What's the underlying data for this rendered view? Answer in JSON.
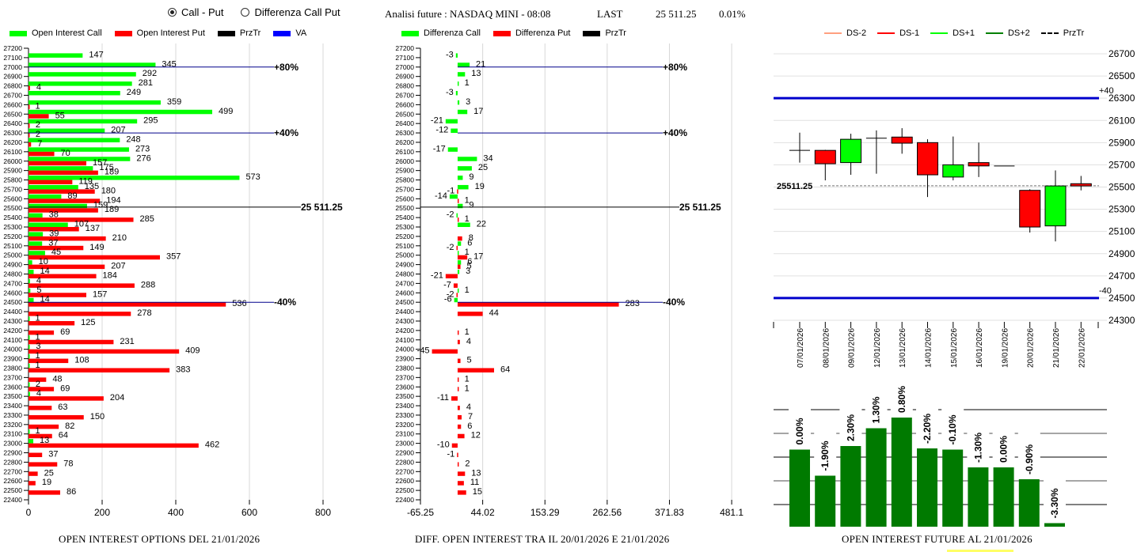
{
  "top_controls": {
    "radio_options": [
      {
        "label": "Call - Put",
        "selected": true
      },
      {
        "label": "Differenza Call Put",
        "selected": false
      }
    ]
  },
  "header": {
    "title": "Analisi future : NASDAQ MINI - 08:08",
    "last_label": "LAST",
    "last_value": "25 511.25",
    "change": "0.01%"
  },
  "colors": {
    "call": "#00ff00",
    "put": "#ff0000",
    "przTr": "#000000",
    "va": "#0000ff",
    "ds_minus2": "#ff9f7f",
    "ds_minus1": "#ff0000",
    "ds_plus1": "#00ff00",
    "ds_plus2": "#008000",
    "oi_bar": "#008000"
  },
  "chart_data": [
    {
      "id": "open-interest-options",
      "type": "bar",
      "orientation": "horizontal",
      "title": "OPEN INTEREST OPTIONS DEL 21/01/2026",
      "legend": [
        "Open Interest Call",
        "Open Interest Put",
        "PrzTr",
        "VA"
      ],
      "legend_position": "top",
      "xlim": [
        0,
        900
      ],
      "xticks": [
        0,
        200,
        400,
        600,
        800
      ],
      "ylim": [
        22400,
        27200
      ],
      "strikes": [
        27100,
        27000,
        26900,
        26800,
        26700,
        26600,
        26500,
        26400,
        26300,
        26200,
        26100,
        26000,
        25900,
        25800,
        25700,
        25600,
        25500,
        25400,
        25300,
        25200,
        25100,
        25000,
        24900,
        24800,
        24700,
        24600,
        24500,
        24400,
        24300,
        24200,
        24100,
        24000,
        23900,
        23800,
        23700,
        23600,
        23500,
        23400,
        23300,
        23200,
        23100,
        23000,
        22900,
        22800,
        22700,
        22600,
        22500
      ],
      "series": [
        {
          "name": "Open Interest Call",
          "values": [
            147,
            345,
            292,
            0,
            249,
            0,
            499,
            0,
            207,
            248,
            273,
            276,
            175,
            573,
            135,
            89,
            159,
            38,
            107,
            39,
            37,
            45,
            10,
            14,
            4,
            5,
            14,
            0,
            1,
            0,
            1,
            3,
            1,
            1,
            0,
            2,
            4,
            0,
            0,
            0,
            1,
            13,
            0,
            0,
            0,
            0,
            0
          ]
        },
        {
          "name": "Open Interest Put",
          "values": [
            0,
            0,
            0,
            4,
            0,
            1,
            55,
            2,
            2,
            7,
            70,
            157,
            189,
            119,
            180,
            194,
            189,
            285,
            137,
            210,
            149,
            357,
            207,
            184,
            288,
            157,
            536,
            278,
            125,
            69,
            231,
            409,
            108,
            383,
            48,
            69,
            204,
            63,
            150,
            82,
            64,
            462,
            37,
            78,
            25,
            19,
            86
          ]
        }
      ],
      "call_fix": {
        "26800": 281,
        "26600": 359,
        "26400": 295
      },
      "reference_lines": [
        {
          "label": "+80%",
          "strike": 27000,
          "color": "va"
        },
        {
          "label": "+40%",
          "strike": 26300,
          "color": "va"
        },
        {
          "label": "-40%",
          "strike": 24500,
          "color": "va"
        },
        {
          "label": "25 511.25",
          "value": 25511.25,
          "color": "przTr"
        }
      ]
    },
    {
      "id": "diff-open-interest",
      "type": "bar",
      "orientation": "horizontal",
      "title": "DIFF. OPEN INTEREST TRA IL 20/01/2026 E 21/01/2026",
      "legend": [
        "Differenza Call",
        "Differenza Put",
        "PrzTr"
      ],
      "legend_position": "top",
      "xlim": [
        -65.25,
        530
      ],
      "xticks": [
        -65.25,
        44.02,
        153.29,
        262.56,
        371.83,
        481.1
      ],
      "ylim": [
        22400,
        27200
      ],
      "strikes": [
        27100,
        27000,
        26900,
        26800,
        26700,
        26600,
        26500,
        26400,
        26300,
        26200,
        26100,
        26000,
        25900,
        25800,
        25700,
        25600,
        25500,
        25400,
        25300,
        25200,
        25100,
        25000,
        24900,
        24800,
        24700,
        24600,
        24500,
        24400,
        24300,
        24200,
        24100,
        24000,
        23900,
        23800,
        23700,
        23600,
        23500,
        23400,
        23300,
        23200,
        23100,
        23000,
        22900,
        22800,
        22700,
        22600,
        22500
      ],
      "series": [
        {
          "name": "Differenza Call",
          "values": [
            -3,
            21,
            13,
            1,
            -3,
            3,
            17,
            -21,
            -12,
            0,
            -17,
            34,
            25,
            9,
            19,
            -14,
            9,
            -2,
            22,
            0,
            6,
            1,
            6,
            3,
            0,
            1,
            -6,
            0,
            0,
            0,
            0,
            0,
            0,
            0,
            0,
            0,
            0,
            0,
            0,
            0,
            0,
            0,
            0,
            0,
            0,
            0,
            0
          ]
        },
        {
          "name": "Differenza Put",
          "values": [
            0,
            0,
            0,
            0,
            0,
            0,
            0,
            0,
            0,
            0,
            0,
            0,
            0,
            0,
            -1,
            1,
            0,
            1,
            0,
            8,
            -2,
            17,
            5,
            -21,
            -7,
            -2,
            283,
            44,
            0,
            1,
            4,
            -45,
            5,
            64,
            1,
            1,
            -11,
            4,
            7,
            6,
            12,
            -10,
            -1,
            2,
            13,
            11,
            15
          ]
        }
      ],
      "reference_lines": [
        {
          "label": "+80%",
          "strike": 27000,
          "color": "va"
        },
        {
          "label": "+40%",
          "strike": 26300,
          "color": "va"
        },
        {
          "label": "-40%",
          "strike": 24500,
          "color": "va"
        },
        {
          "label": "25 511.25",
          "value": 25511.25,
          "color": "przTr"
        }
      ]
    },
    {
      "id": "future-candles",
      "type": "candlestick",
      "legend": [
        "DS-2",
        "DS-1",
        "DS+1",
        "DS+2",
        "PrzTr"
      ],
      "legend_position": "top",
      "ylim": [
        24300,
        26700
      ],
      "yticks": [
        26700,
        26500,
        26300,
        26100,
        25900,
        25700,
        25500,
        25300,
        25100,
        24900,
        24700,
        24500,
        24300
      ],
      "dates": [
        "07/01/2026",
        "08/01/2026",
        "09/01/2026",
        "12/01/2026",
        "13/01/2026",
        "14/01/2026",
        "15/01/2026",
        "16/01/2026",
        "19/01/2026",
        "20/01/2026",
        "21/01/2026",
        "22/01/2026"
      ],
      "ohlc": [
        [
          25830,
          25990,
          25720,
          25830
        ],
        [
          25830,
          25835,
          25560,
          25710
        ],
        [
          25720,
          25980,
          25610,
          25930
        ],
        [
          25940,
          26010,
          25620,
          25940
        ],
        [
          25950,
          26030,
          25800,
          25895
        ],
        [
          25900,
          25930,
          25410,
          25610
        ],
        [
          25590,
          25955,
          25560,
          25700
        ],
        [
          25720,
          25900,
          25590,
          25690
        ],
        [
          25690,
          25690,
          25690,
          25690
        ],
        [
          25470,
          25480,
          25090,
          25140
        ],
        [
          25150,
          25650,
          25010,
          25510
        ],
        [
          25530,
          25600,
          25470,
          25510
        ]
      ],
      "reference_lines": [
        {
          "label": "+40",
          "value": 26300
        },
        {
          "label": "-40",
          "value": 24500
        },
        {
          "label": "25511.25",
          "value": 25511.25,
          "dashed": true
        }
      ]
    },
    {
      "id": "open-interest-future",
      "type": "bar",
      "title": "OPEN INTEREST FUTURE AL 21/01/2026",
      "categories": [
        "07/01/2026",
        "08/01/2026",
        "09/01/2026",
        "12/01/2026",
        "13/01/2026",
        "14/01/2026",
        "15/01/2026",
        "16/01/2026",
        "19/01/2026",
        "20/01/2026",
        "21/01/2026"
      ],
      "relative_heights": [
        0.65,
        0.43,
        0.68,
        0.83,
        0.92,
        0.66,
        0.65,
        0.5,
        0.5,
        0.4,
        0.03
      ],
      "labels": [
        "0.00%",
        "-1.90%",
        "2.30%",
        "1.30%",
        "0.80%",
        "-2.20%",
        "-0.10%",
        "-1.30%",
        "0.00%",
        "-0.90%",
        "-3.30%"
      ]
    }
  ],
  "legends": {
    "left": [
      "Open Interest Call",
      "Open Interest Put",
      "PrzTr",
      "VA"
    ],
    "middle": [
      "Differenza Call",
      "Differenza Put",
      "PrzTr"
    ],
    "right": [
      "DS-2",
      "DS-1",
      "DS+1",
      "DS+2",
      "PrzTr"
    ]
  },
  "captions": {
    "left": "OPEN INTEREST OPTIONS DEL 21/01/2026",
    "middle": "DIFF. OPEN INTEREST TRA IL 20/01/2026 E 21/01/2026",
    "right": "OPEN INTEREST FUTURE AL 21/01/2026"
  }
}
